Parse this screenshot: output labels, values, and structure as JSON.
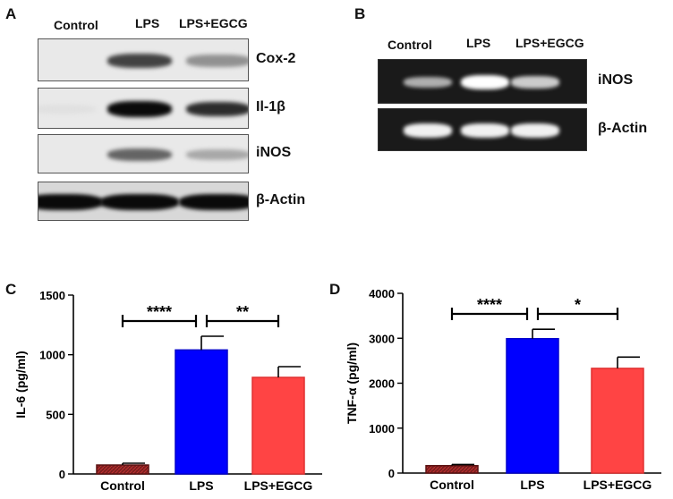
{
  "panels": {
    "a": "A",
    "b": "B",
    "c": "C",
    "d": "D"
  },
  "western_blot": {
    "lanes": [
      "Control",
      "LPS",
      "LPS+EGCG"
    ],
    "rows": [
      {
        "name": "Cox-2",
        "intensity": [
          0.0,
          0.75,
          0.4
        ]
      },
      {
        "name": "Il-1β",
        "intensity": [
          0.05,
          1.0,
          0.85
        ]
      },
      {
        "name": "iNOS",
        "intensity": [
          0.0,
          0.6,
          0.3
        ]
      },
      {
        "name": "β-Actin",
        "intensity": [
          1.0,
          1.0,
          1.0
        ]
      }
    ]
  },
  "pcr_gel": {
    "lanes": [
      "Control",
      "LPS",
      "LPS+EGCG"
    ],
    "rows": [
      {
        "name": "iNOS",
        "intensity": [
          0.45,
          1.0,
          0.65
        ]
      },
      {
        "name": "β-Actin",
        "intensity": [
          0.9,
          0.9,
          0.9
        ]
      }
    ]
  },
  "chart_data": [
    {
      "type": "bar",
      "panel": "C",
      "categories": [
        "Control",
        "LPS",
        "LPS+EGCG"
      ],
      "values": [
        75,
        1040,
        810
      ],
      "errors": [
        15,
        115,
        90
      ],
      "colors": [
        "#7a1e1e",
        "#0000ff",
        "#ff4444"
      ],
      "ylabel": "IL-6 (pg/ml)",
      "ylim": [
        0,
        1500
      ],
      "yticks": [
        "0",
        "500",
        "1000",
        "1500"
      ],
      "significance": [
        {
          "from": 0,
          "to": 1,
          "label": "****"
        },
        {
          "from": 1,
          "to": 2,
          "label": "**"
        }
      ]
    },
    {
      "type": "bar",
      "panel": "D",
      "categories": [
        "Control",
        "LPS",
        "LPS+EGCG"
      ],
      "values": [
        165,
        2990,
        2330
      ],
      "errors": [
        25,
        210,
        250
      ],
      "colors": [
        "#7a1e1e",
        "#0000ff",
        "#ff4444"
      ],
      "ylabel": "TNF-α (pg/ml)",
      "ylim": [
        0,
        4000
      ],
      "yticks": [
        "0",
        "1000",
        "2000",
        "3000",
        "4000"
      ],
      "significance": [
        {
          "from": 0,
          "to": 1,
          "label": "****"
        },
        {
          "from": 1,
          "to": 2,
          "label": "*"
        }
      ]
    }
  ]
}
